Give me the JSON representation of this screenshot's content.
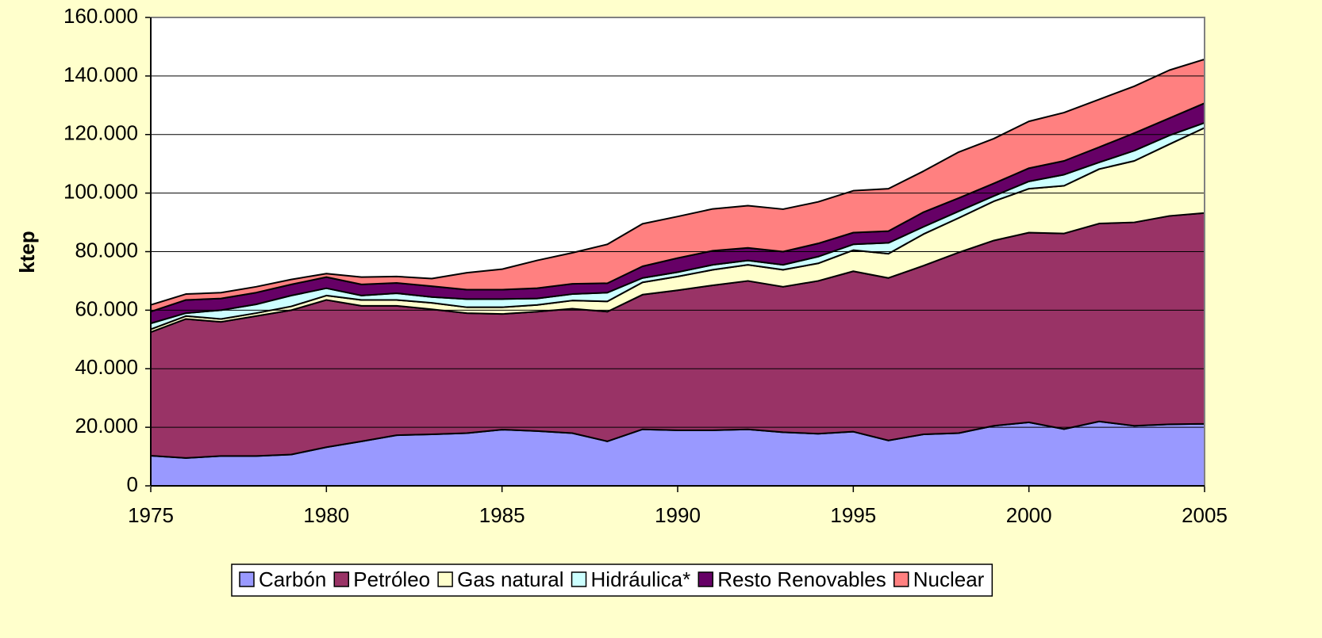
{
  "chart_data": {
    "type": "stacked_area",
    "y_label": "ktep",
    "x": [
      1975,
      1976,
      1977,
      1978,
      1979,
      1980,
      1981,
      1982,
      1983,
      1984,
      1985,
      1986,
      1987,
      1988,
      1989,
      1990,
      1991,
      1992,
      1993,
      1994,
      1995,
      1996,
      1997,
      1998,
      1999,
      2000,
      2001,
      2002,
      2003,
      2004,
      2005
    ],
    "xlim": [
      1975,
      2005
    ],
    "xticks": [
      1975,
      1980,
      1985,
      1990,
      1995,
      2000,
      2005
    ],
    "ylim": [
      0,
      160000
    ],
    "yticks": [
      0,
      {
        "value": 20000,
        "label": "20.000"
      },
      {
        "value": 40000,
        "label": "40.000"
      },
      {
        "value": 60000,
        "label": "60.000"
      },
      {
        "value": 80000,
        "label": "80.000"
      },
      {
        "value": 100000,
        "label": "100.000"
      },
      {
        "value": 120000,
        "label": "120.000"
      },
      {
        "value": 140000,
        "label": "140.000"
      },
      {
        "value": 160000,
        "label": "160.000"
      }
    ],
    "grid": true,
    "legend": "bottom",
    "series": [
      {
        "name": "Carbón",
        "color": "#9999ff",
        "values": [
          10300,
          9500,
          10200,
          10200,
          10700,
          13200,
          15200,
          17300,
          17600,
          18000,
          19200,
          18700,
          18000,
          15200,
          19300,
          19000,
          19000,
          19300,
          18300,
          17800,
          18500,
          15500,
          17600,
          18000,
          20500,
          21700,
          19400,
          22000,
          20500,
          21000,
          21200
        ]
      },
      {
        "name": "Petróleo",
        "color": "#993366",
        "values": [
          42200,
          47500,
          45800,
          47800,
          49300,
          50300,
          46300,
          44200,
          42700,
          41000,
          39500,
          40800,
          42500,
          44300,
          46000,
          47800,
          49500,
          50700,
          49700,
          52200,
          54800,
          55500,
          57600,
          61700,
          63300,
          64800,
          66800,
          67600,
          69500,
          71200,
          72000
        ]
      },
      {
        "name": "Gas natural",
        "color": "#ffffcc",
        "values": [
          1000,
          1000,
          1000,
          1000,
          1300,
          1500,
          2000,
          2000,
          2200,
          2000,
          2300,
          2300,
          2800,
          3500,
          4200,
          4700,
          5300,
          5500,
          5800,
          6000,
          7200,
          8300,
          10800,
          11800,
          13400,
          15000,
          16300,
          18600,
          21000,
          24500,
          29100
        ]
      },
      {
        "name": "Hidráulica*",
        "color": "#ccffff",
        "values": [
          2000,
          1000,
          3000,
          3000,
          3700,
          2500,
          1500,
          2300,
          2000,
          2800,
          2800,
          2200,
          2200,
          3000,
          1500,
          1500,
          1700,
          1500,
          1700,
          2300,
          2000,
          3700,
          2500,
          2300,
          1800,
          2500,
          3800,
          2300,
          3500,
          3000,
          1700
        ]
      },
      {
        "name": "Resto Renovables",
        "color": "#660066",
        "values": [
          4000,
          4500,
          4000,
          4000,
          3800,
          3800,
          3800,
          3500,
          3700,
          3200,
          3200,
          3500,
          3500,
          3200,
          4000,
          4800,
          4800,
          4300,
          4500,
          4500,
          4000,
          4000,
          5000,
          4500,
          4300,
          4500,
          4700,
          5200,
          6000,
          5900,
          6700
        ]
      },
      {
        "name": "Nuclear",
        "color": "#ff8080",
        "values": [
          2300,
          2000,
          2000,
          2000,
          1700,
          1200,
          2500,
          2200,
          2600,
          5800,
          7000,
          9500,
          10600,
          13300,
          14500,
          14200,
          14300,
          14400,
          14500,
          14200,
          14300,
          14500,
          14000,
          15700,
          15300,
          16000,
          16500,
          16300,
          16000,
          16400,
          15000
        ]
      }
    ]
  }
}
